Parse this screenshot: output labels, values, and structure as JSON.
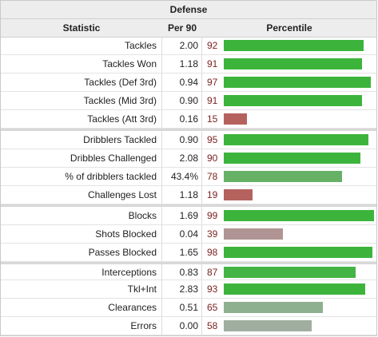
{
  "title": "Defense",
  "columns": {
    "statistic": "Statistic",
    "per90": "Per 90",
    "percentile": "Percentile"
  },
  "rows": [
    {
      "stat": "Tackles",
      "per90": "2.00",
      "pct": "92",
      "color": "#3cb43c",
      "groupStart": false
    },
    {
      "stat": "Tackles Won",
      "per90": "1.18",
      "pct": "91",
      "color": "#3cb43c",
      "groupStart": false
    },
    {
      "stat": "Tackles (Def 3rd)",
      "per90": "0.94",
      "pct": "97",
      "color": "#3cb43c",
      "groupStart": false
    },
    {
      "stat": "Tackles (Mid 3rd)",
      "per90": "0.90",
      "pct": "91",
      "color": "#3cb43c",
      "groupStart": false
    },
    {
      "stat": "Tackles (Att 3rd)",
      "per90": "0.16",
      "pct": "15",
      "color": "#b5625e",
      "groupStart": false
    },
    {
      "stat": "Dribblers Tackled",
      "per90": "0.90",
      "pct": "95",
      "color": "#3cb43c",
      "groupStart": true
    },
    {
      "stat": "Dribbles Challenged",
      "per90": "2.08",
      "pct": "90",
      "color": "#3cb43c",
      "groupStart": false
    },
    {
      "stat": "% of dribblers tackled",
      "per90": "43.4%",
      "pct": "78",
      "color": "#66b166",
      "groupStart": false
    },
    {
      "stat": "Challenges Lost",
      "per90": "1.18",
      "pct": "19",
      "color": "#b5625e",
      "groupStart": false
    },
    {
      "stat": "Blocks",
      "per90": "1.69",
      "pct": "99",
      "color": "#3cb43c",
      "groupStart": true
    },
    {
      "stat": "Shots Blocked",
      "per90": "0.04",
      "pct": "39",
      "color": "#b09494",
      "groupStart": false
    },
    {
      "stat": "Passes Blocked",
      "per90": "1.65",
      "pct": "98",
      "color": "#3cb43c",
      "groupStart": false
    },
    {
      "stat": "Interceptions",
      "per90": "0.83",
      "pct": "87",
      "color": "#44b444",
      "groupStart": true
    },
    {
      "stat": "Tkl+Int",
      "per90": "2.83",
      "pct": "93",
      "color": "#3cb43c",
      "groupStart": false
    },
    {
      "stat": "Clearances",
      "per90": "0.51",
      "pct": "65",
      "color": "#8fb08f",
      "groupStart": false
    },
    {
      "stat": "Errors",
      "per90": "0.00",
      "pct": "58",
      "color": "#a0aea0",
      "groupStart": false
    }
  ]
}
